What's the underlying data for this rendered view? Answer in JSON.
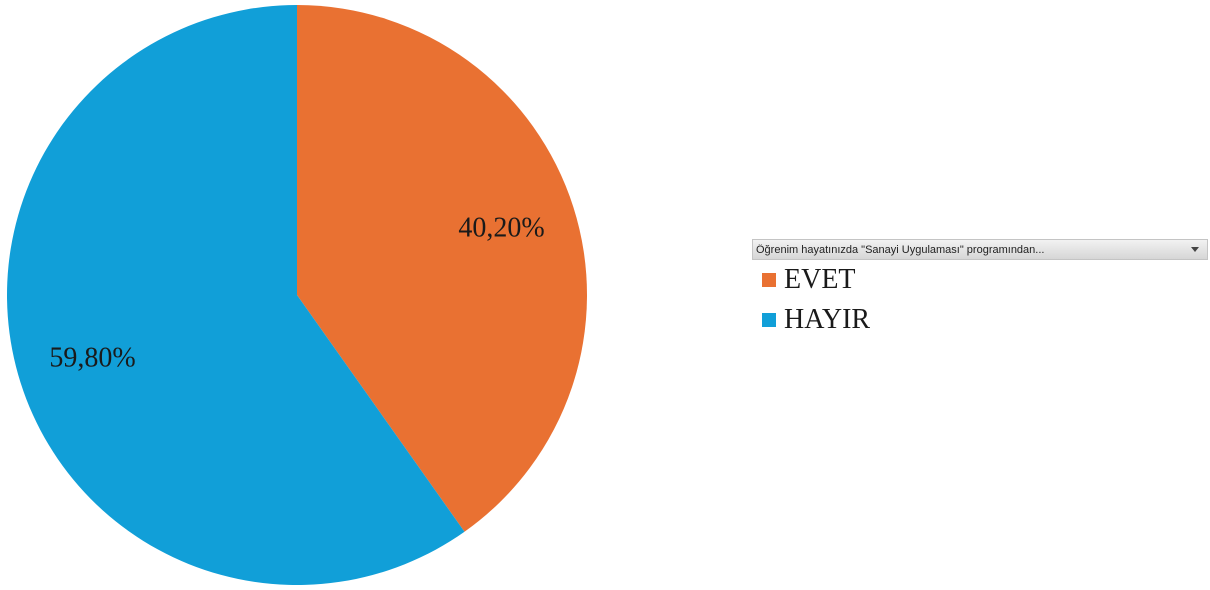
{
  "chart_data": {
    "type": "pie",
    "categories": [
      "EVET",
      "HAYIR"
    ],
    "values": [
      40.2,
      59.8
    ],
    "data_labels": [
      "40,20%",
      "59,80%"
    ],
    "colors": [
      "#E97132",
      "#119FD8"
    ],
    "legend_placement": "right"
  },
  "legend": {
    "field_label": "Öğrenim hayatınızda \"Sanayi Uygulaması\" programından...",
    "dropdown_icon": "chevron-down-icon",
    "entries": [
      {
        "label": "EVET",
        "color": "#E97132"
      },
      {
        "label": "HAYIR",
        "color": "#119FD8"
      }
    ]
  }
}
